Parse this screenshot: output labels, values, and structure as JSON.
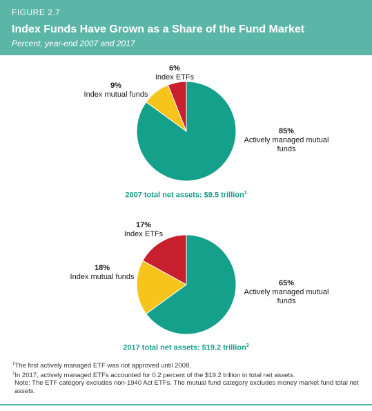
{
  "header": {
    "figure_label": "FIGURE 2.7",
    "title": "Index Funds Have Grown as a Share of the Fund Market",
    "subtitle": "Percent, year-end 2007 and 2017"
  },
  "colors": {
    "header_bg": "#5cb6a7",
    "actively_managed": "#15a08c",
    "index_mutual": "#f7c41b",
    "index_etfs": "#c8202f",
    "total_text": "#169d88"
  },
  "chart_data": [
    {
      "type": "pie",
      "title": "2007 total net assets: $9.5 trillion",
      "title_footnote": "1",
      "slices": [
        {
          "label": "Actively managed mutual funds",
          "value": 85,
          "value_label": "85%"
        },
        {
          "label": "Index mutual funds",
          "value": 9,
          "value_label": "9%"
        },
        {
          "label": "Index ETFs",
          "value": 6,
          "value_label": "6%"
        }
      ]
    },
    {
      "type": "pie",
      "title": "2017 total net assets: $19.2 trillion",
      "title_footnote": "2",
      "slices": [
        {
          "label": "Actively managed mutual funds",
          "value": 65,
          "value_label": "65%"
        },
        {
          "label": "Index mutual funds",
          "value": 18,
          "value_label": "18%"
        },
        {
          "label": "Index ETFs",
          "value": 17,
          "value_label": "17%"
        }
      ]
    }
  ],
  "footnotes": {
    "note1_mark": "1",
    "note1": "The first actively managed ETF was not approved until 2008.",
    "note2_mark": "2",
    "note2": "In 2017, actively managed ETFs accounted for 0.2 percent of the $19.2 trillion in total net assets.",
    "note3": "Note: The ETF category excludes non-1940 Act ETFs. The mutual fund category excludes money market fund total net assets."
  }
}
